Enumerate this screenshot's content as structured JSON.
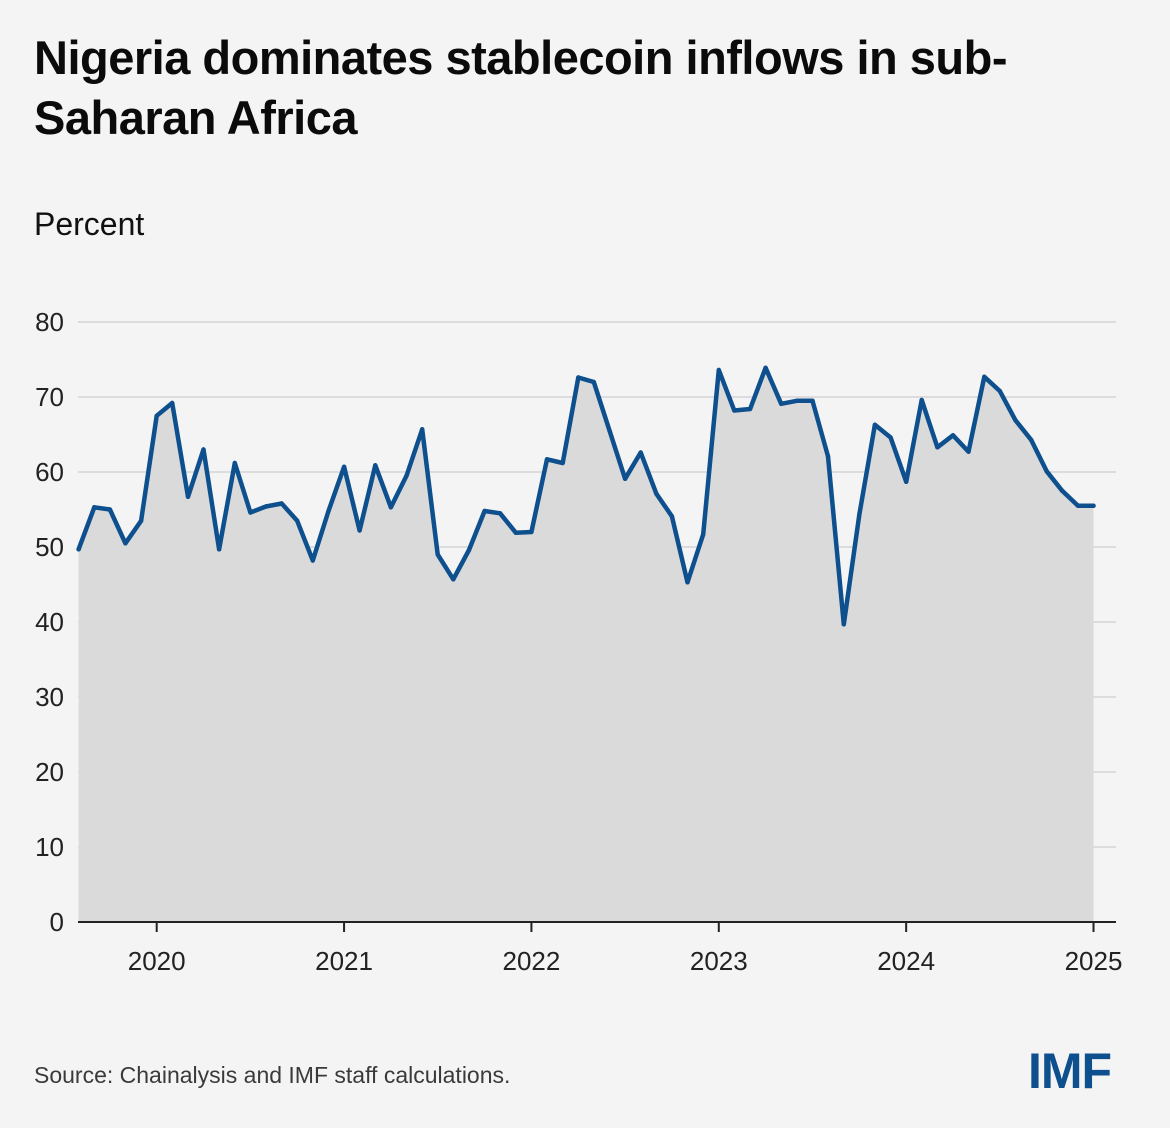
{
  "title": "Nigeria dominates stablecoin inflows in sub-Saharan Africa",
  "source": "Source: Chainalysis and IMF staff calculations.",
  "logo": "IMF",
  "colors": {
    "line": "#0e4f8e",
    "fill": "#dadadb",
    "grid": "#d4d4d6",
    "axis": "#222222",
    "background": "#f4f4f5"
  },
  "chart_data": {
    "type": "area",
    "ylabel": "Percent",
    "ylim": [
      0,
      80
    ],
    "yticks": [
      0,
      10,
      20,
      30,
      40,
      50,
      60,
      70,
      80
    ],
    "xlim": [
      2019.58,
      2025.12
    ],
    "xticks": [
      2020,
      2021,
      2022,
      2023,
      2024,
      2025
    ],
    "xtick_labels": [
      "2020",
      "2021",
      "2022",
      "2023",
      "2024",
      "2025"
    ],
    "grid": true,
    "series": [
      {
        "x": [
          2019.583,
          2019.667,
          2019.75,
          2019.833,
          2019.917,
          2020.0,
          2020.083,
          2020.167,
          2020.25,
          2020.333,
          2020.417,
          2020.5,
          2020.583,
          2020.667,
          2020.75,
          2020.833,
          2020.917,
          2021.0,
          2021.083,
          2021.167,
          2021.25,
          2021.333,
          2021.417,
          2021.5,
          2021.583,
          2021.667,
          2021.75,
          2021.833,
          2021.917,
          2022.0,
          2022.083,
          2022.167,
          2022.25,
          2022.333,
          2022.417,
          2022.5,
          2022.583,
          2022.667,
          2022.75,
          2022.833,
          2022.917,
          2023.0,
          2023.083,
          2023.167,
          2023.25,
          2023.333,
          2023.417,
          2023.5,
          2023.583,
          2023.667,
          2023.75,
          2023.833,
          2023.917,
          2024.0,
          2024.083,
          2024.167,
          2024.25,
          2024.333,
          2024.417,
          2024.5,
          2024.583,
          2024.667,
          2024.75,
          2024.833,
          2024.917,
          2025.0
        ],
        "values": [
          49.7,
          55.3,
          55.0,
          50.5,
          53.5,
          67.5,
          69.2,
          56.7,
          63.0,
          49.7,
          61.2,
          54.6,
          55.4,
          55.8,
          53.5,
          48.2,
          54.8,
          60.7,
          52.2,
          60.9,
          55.3,
          59.5,
          65.7,
          49.0,
          45.7,
          49.6,
          54.8,
          54.5,
          51.9,
          52.0,
          61.7,
          61.2,
          72.6,
          72.0,
          65.5,
          59.1,
          62.6,
          57.1,
          54.1,
          45.3,
          51.7,
          73.6,
          68.2,
          68.4,
          73.9,
          69.1,
          69.5,
          69.5,
          62.1,
          39.7,
          54.3,
          66.3,
          64.6,
          58.7,
          69.6,
          63.3,
          64.9,
          62.7,
          72.7,
          70.8,
          66.9,
          64.3,
          60.1,
          57.5,
          55.5,
          55.5
        ]
      }
    ]
  }
}
